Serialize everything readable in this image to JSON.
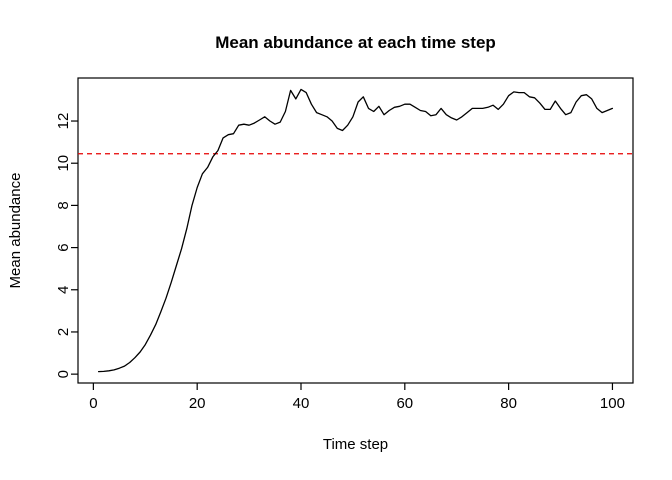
{
  "figure": {
    "background_color": "#ffffff",
    "curve_color": "#000000",
    "reference_line_color": "#e60000"
  },
  "chart_data": {
    "type": "line",
    "title": "Mean abundance at each time step",
    "xlabel": "Time step",
    "ylabel": "Mean abundance",
    "x_ticks": [
      0,
      20,
      40,
      60,
      80,
      100
    ],
    "y_ticks": [
      0,
      2,
      4,
      6,
      8,
      10,
      12
    ],
    "xlim": [
      -2.96,
      103.96
    ],
    "ylim": [
      -0.42,
      14.04
    ],
    "grid": false,
    "legend": false,
    "reference_line": {
      "value": 10.45,
      "color": "#e60000",
      "style": "dashed",
      "orientation": "horizontal"
    },
    "series": [
      {
        "name": "mean-abundance",
        "color": "#000000",
        "style": "solid",
        "x_start": 1,
        "x_step": 1,
        "values": [
          0.12,
          0.13,
          0.16,
          0.2,
          0.28,
          0.38,
          0.55,
          0.78,
          1.05,
          1.4,
          1.85,
          2.35,
          2.95,
          3.6,
          4.35,
          5.15,
          5.95,
          6.9,
          8.0,
          8.85,
          9.5,
          9.8,
          10.3,
          10.6,
          11.2,
          11.35,
          11.4,
          11.8,
          11.85,
          11.8,
          11.9,
          12.05,
          12.2,
          12.0,
          11.85,
          11.95,
          12.45,
          13.45,
          13.05,
          13.5,
          13.35,
          12.8,
          12.4,
          12.3,
          12.2,
          12.0,
          11.65,
          11.55,
          11.8,
          12.2,
          12.9,
          13.15,
          12.6,
          12.45,
          12.7,
          12.3,
          12.5,
          12.65,
          12.7,
          12.8,
          12.8,
          12.65,
          12.5,
          12.45,
          12.25,
          12.3,
          12.6,
          12.3,
          12.15,
          12.05,
          12.2,
          12.4,
          12.6,
          12.6,
          12.6,
          12.65,
          12.75,
          12.55,
          12.8,
          13.2,
          13.38,
          13.35,
          13.35,
          13.15,
          13.1,
          12.85,
          12.55,
          12.55,
          12.95,
          12.6,
          12.3,
          12.4,
          12.9,
          13.2,
          13.25,
          13.05,
          12.6,
          12.4,
          12.5,
          12.6
        ]
      }
    ]
  }
}
